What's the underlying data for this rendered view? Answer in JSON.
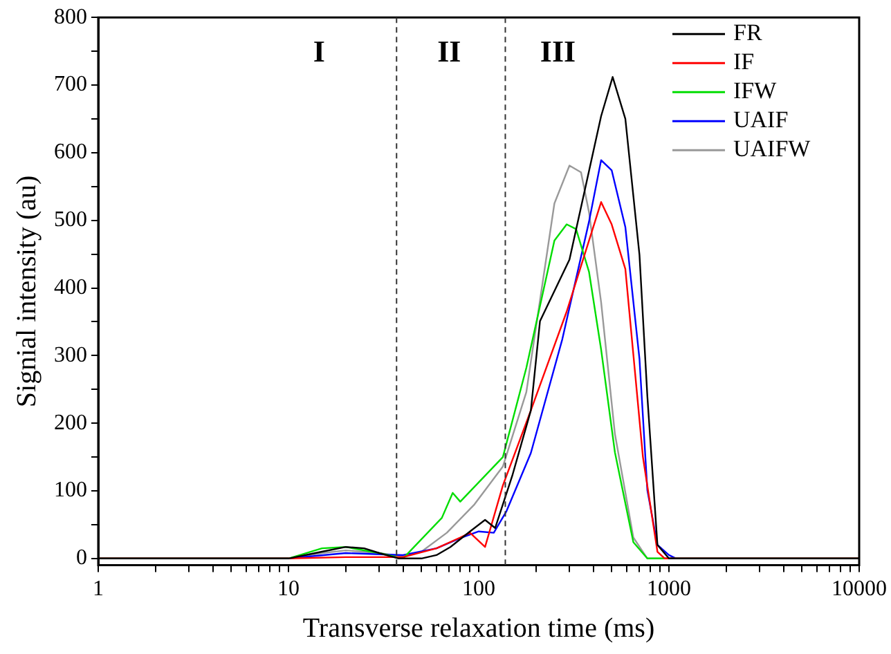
{
  "chart_data": {
    "type": "line",
    "xlabel": "Transverse relaxation time (ms)",
    "ylabel": "Signial intensity (au)",
    "log": "x",
    "grid": false,
    "legend": "top right",
    "marker": "none",
    "line_style": "solid",
    "xlim": [
      1,
      10000
    ],
    "ylim": [
      -10,
      800
    ],
    "xticks": [
      1,
      {
        "value": 2,
        "label": null
      },
      {
        "value": 3,
        "label": null
      },
      {
        "value": 4,
        "label": null
      },
      {
        "value": 5,
        "label": null
      },
      {
        "value": 6,
        "label": null
      },
      {
        "value": 7,
        "label": null
      },
      {
        "value": 8,
        "label": null
      },
      {
        "value": 9,
        "label": null
      },
      10,
      {
        "value": 20,
        "label": null
      },
      {
        "value": 30,
        "label": null
      },
      {
        "value": 40,
        "label": null
      },
      {
        "value": 50,
        "label": null
      },
      {
        "value": 60,
        "label": null
      },
      {
        "value": 70,
        "label": null
      },
      {
        "value": 80,
        "label": null
      },
      {
        "value": 90,
        "label": null
      },
      100,
      {
        "value": 200,
        "label": null
      },
      {
        "value": 300,
        "label": null
      },
      {
        "value": 400,
        "label": null
      },
      {
        "value": 500,
        "label": null
      },
      {
        "value": 600,
        "label": null
      },
      {
        "value": 700,
        "label": null
      },
      {
        "value": 800,
        "label": null
      },
      {
        "value": 900,
        "label": null
      },
      1000,
      {
        "value": 2000,
        "label": null
      },
      {
        "value": 3000,
        "label": null
      },
      {
        "value": 4000,
        "label": null
      },
      {
        "value": 5000,
        "label": null
      },
      {
        "value": 6000,
        "label": null
      },
      {
        "value": 7000,
        "label": null
      },
      {
        "value": 8000,
        "label": null
      },
      {
        "value": 9000,
        "label": null
      },
      10000
    ],
    "yticks": [
      0,
      {
        "value": 50,
        "label": null
      },
      100,
      {
        "value": 150,
        "label": null
      },
      200,
      {
        "value": 250,
        "label": null
      },
      300,
      {
        "value": 350,
        "label": null
      },
      400,
      {
        "value": 450,
        "label": null
      },
      500,
      {
        "value": 550,
        "label": null
      },
      600,
      {
        "value": 650,
        "label": null
      },
      700,
      {
        "value": 750,
        "label": null
      },
      800
    ],
    "ref_lines": [
      {
        "axis": "x",
        "value": 37,
        "color": "#333333",
        "line_style": "dashed"
      },
      {
        "axis": "x",
        "value": 138,
        "color": "#333333",
        "line_style": "dashed"
      }
    ],
    "annotations": [
      "I",
      "II",
      "III"
    ],
    "series": [
      {
        "name": "FR",
        "color": "#000000",
        "x": [
          1,
          10,
          15,
          20,
          25,
          30,
          38,
          50,
          60,
          71,
          90,
          108,
          122,
          150,
          188,
          210,
          300,
          440,
          506,
          590,
          700,
          770,
          870,
          1000,
          10000
        ],
        "values": [
          0,
          0,
          10,
          17,
          15,
          8,
          0,
          0,
          5,
          17,
          40,
          57,
          45,
          122,
          219,
          351,
          442,
          654,
          712,
          650,
          449,
          240,
          20,
          0,
          0
        ]
      },
      {
        "name": "IF",
        "color": "#ff0000",
        "x": [
          1,
          10,
          20,
          40,
          60,
          80,
          90,
          108,
          134,
          188,
          290,
          440,
          500,
          590,
          730,
          870,
          950,
          10000
        ],
        "values": [
          0,
          0,
          2,
          2,
          15,
          31,
          38,
          17,
          108,
          219,
          365,
          527,
          494,
          428,
          150,
          10,
          0,
          0
        ]
      },
      {
        "name": "IFW",
        "color": "#00dd00",
        "x": [
          1,
          10,
          15,
          20,
          30,
          40,
          64,
          73,
          80,
          134,
          178,
          250,
          290,
          325,
          380,
          440,
          520,
          650,
          770,
          10000
        ],
        "values": [
          0,
          0,
          15,
          17,
          8,
          0,
          60,
          97,
          84,
          150,
          282,
          470,
          494,
          487,
          424,
          309,
          157,
          24,
          0,
          0
        ]
      },
      {
        "name": "UAIF",
        "color": "#0000ff",
        "x": [
          1,
          10,
          20,
          40,
          60,
          80,
          100,
          120,
          140,
          188,
          275,
          380,
          440,
          500,
          590,
          700,
          770,
          870,
          1000,
          1090,
          10000
        ],
        "values": [
          0,
          0,
          8,
          5,
          15,
          30,
          40,
          38,
          70,
          156,
          324,
          498,
          589,
          574,
          490,
          295,
          101,
          20,
          5,
          0,
          0
        ]
      },
      {
        "name": "UAIFW",
        "color": "#999999",
        "x": [
          1,
          10,
          15,
          20,
          30,
          40,
          50,
          68,
          95,
          134,
          178,
          250,
          300,
          345,
          380,
          440,
          520,
          650,
          770,
          10000
        ],
        "values": [
          0,
          0,
          8,
          12,
          8,
          3,
          10,
          38,
          80,
          136,
          246,
          525,
          581,
          571,
          512,
          379,
          184,
          31,
          0,
          0
        ]
      }
    ]
  }
}
